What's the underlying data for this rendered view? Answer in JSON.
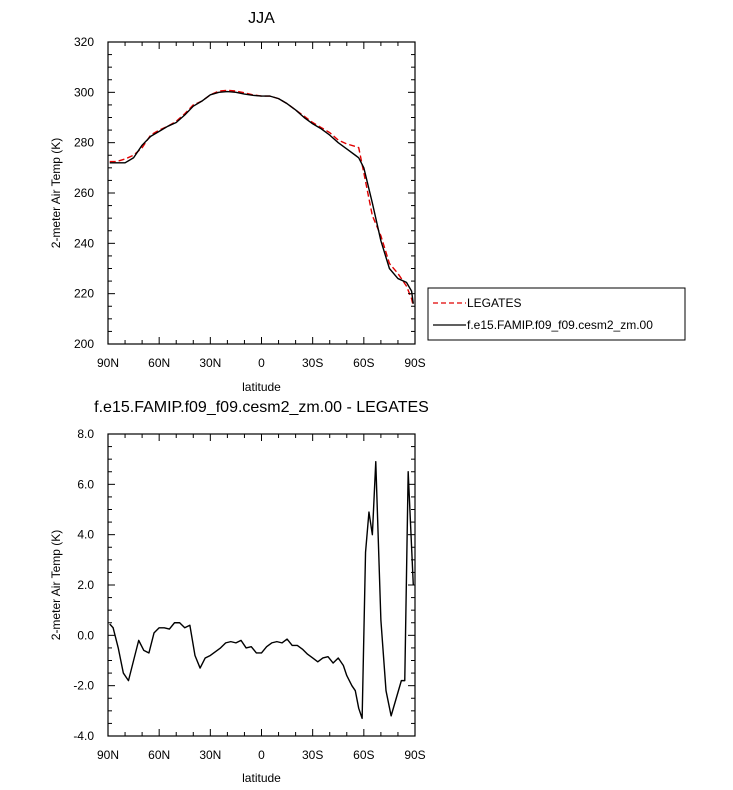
{
  "chart_data": [
    {
      "type": "line",
      "title": "JJA",
      "xlabel": "latitude",
      "ylabel": "2-meter Air Temp (K)",
      "xlim": [
        90,
        -90
      ],
      "ylim": [
        200,
        320
      ],
      "x_ticks": [
        90,
        60,
        30,
        0,
        -30,
        -60,
        -90
      ],
      "x_tick_labels": [
        "90N",
        "60N",
        "30N",
        "0",
        "30S",
        "60S",
        "90S"
      ],
      "y_ticks": [
        200,
        220,
        240,
        260,
        280,
        300,
        320
      ],
      "y_tick_labels": [
        "200",
        "220",
        "240",
        "260",
        "280",
        "300",
        "320"
      ],
      "legend": {
        "placement": "right"
      },
      "series": [
        {
          "name": "LEGATES",
          "color": "#e00000",
          "style": "dashed",
          "x": [
            89,
            85,
            80,
            75,
            70,
            65,
            60,
            55,
            50,
            45,
            40,
            35,
            30,
            25,
            20,
            15,
            10,
            5,
            0,
            -5,
            -10,
            -15,
            -20,
            -25,
            -30,
            -35,
            -40,
            -45,
            -50,
            -55,
            -57,
            -60,
            -65,
            -70,
            -75,
            -80,
            -85,
            -88,
            -89
          ],
          "y": [
            272.5,
            272.5,
            273.5,
            275.0,
            278.0,
            283.0,
            285.0,
            286.5,
            288.5,
            291.5,
            295.0,
            296.5,
            299.0,
            300.5,
            300.8,
            300.5,
            299.8,
            299.0,
            298.5,
            298.5,
            297.5,
            295.5,
            293.0,
            290.5,
            288.0,
            286.0,
            284.0,
            281.0,
            279.5,
            278.5,
            278.0,
            268.0,
            251.0,
            243.0,
            232.0,
            228.0,
            223.0,
            218.0,
            215.0
          ]
        },
        {
          "name": "f.e15.FAMIP.f09_f09.cesm2_zm.00",
          "color": "#000000",
          "style": "solid",
          "x": [
            89,
            85,
            80,
            75,
            70,
            65,
            60,
            55,
            50,
            45,
            40,
            35,
            30,
            25,
            20,
            15,
            10,
            5,
            0,
            -5,
            -10,
            -15,
            -20,
            -25,
            -30,
            -35,
            -40,
            -45,
            -50,
            -55,
            -57,
            -60,
            -65,
            -70,
            -75,
            -80,
            -85,
            -88,
            -89
          ],
          "y": [
            272.0,
            272.0,
            272.0,
            274.0,
            279.0,
            282.5,
            284.5,
            286.5,
            288.0,
            291.0,
            294.5,
            296.5,
            299.0,
            300.0,
            300.3,
            300.0,
            299.3,
            298.8,
            298.5,
            298.5,
            297.5,
            295.5,
            293.0,
            290.0,
            287.5,
            285.5,
            283.0,
            280.0,
            277.5,
            275.0,
            274.0,
            270.0,
            256.0,
            241.0,
            230.0,
            226.0,
            224.5,
            221.0,
            216.0
          ]
        }
      ]
    },
    {
      "type": "line",
      "title": "f.e15.FAMIP.f09_f09.cesm2_zm.00 - LEGATES",
      "xlabel": "latitude",
      "ylabel": "2-meter Air Temp (K)",
      "xlim": [
        90,
        -90
      ],
      "ylim": [
        -4.0,
        8.0
      ],
      "x_ticks": [
        90,
        60,
        30,
        0,
        -30,
        -60,
        -90
      ],
      "x_tick_labels": [
        "90N",
        "60N",
        "30N",
        "0",
        "30S",
        "60S",
        "90S"
      ],
      "y_ticks": [
        -4.0,
        -2.0,
        0.0,
        2.0,
        4.0,
        6.0,
        8.0
      ],
      "y_tick_labels": [
        "-4.0",
        "-2.0",
        "0.0",
        "2.0",
        "4.0",
        "6.0",
        "8.0"
      ],
      "series": [
        {
          "color": "#000000",
          "style": "solid",
          "x": [
            89,
            87,
            84,
            81,
            78,
            75,
            72,
            69,
            66,
            63,
            60,
            57,
            54,
            51,
            48,
            45,
            42,
            39,
            36,
            33,
            30,
            27,
            24,
            21,
            18,
            15,
            12,
            9,
            6,
            3,
            0,
            -3,
            -6,
            -9,
            -12,
            -15,
            -18,
            -21,
            -24,
            -27,
            -30,
            -33,
            -36,
            -39,
            -42,
            -45,
            -48,
            -50,
            -53,
            -55,
            -57,
            -59,
            -61,
            -63,
            -65,
            -67,
            -70,
            -73,
            -76,
            -79,
            -82,
            -84,
            -86,
            -88,
            -89
          ],
          "y": [
            0.45,
            0.3,
            -0.5,
            -1.5,
            -1.8,
            -1.0,
            -0.2,
            -0.6,
            -0.7,
            0.1,
            0.3,
            0.3,
            0.25,
            0.5,
            0.5,
            0.3,
            0.4,
            -0.8,
            -1.3,
            -0.9,
            -0.8,
            -0.65,
            -0.5,
            -0.3,
            -0.25,
            -0.3,
            -0.2,
            -0.5,
            -0.45,
            -0.7,
            -0.7,
            -0.45,
            -0.3,
            -0.25,
            -0.3,
            -0.15,
            -0.4,
            -0.4,
            -0.55,
            -0.75,
            -0.9,
            -1.05,
            -0.9,
            -0.85,
            -1.1,
            -0.9,
            -1.2,
            -1.6,
            -2.0,
            -2.2,
            -2.9,
            -3.3,
            3.3,
            4.9,
            4.0,
            6.9,
            0.6,
            -2.2,
            -3.2,
            -2.5,
            -1.8,
            -1.8,
            6.5,
            3.5,
            2.0
          ]
        }
      ]
    }
  ]
}
